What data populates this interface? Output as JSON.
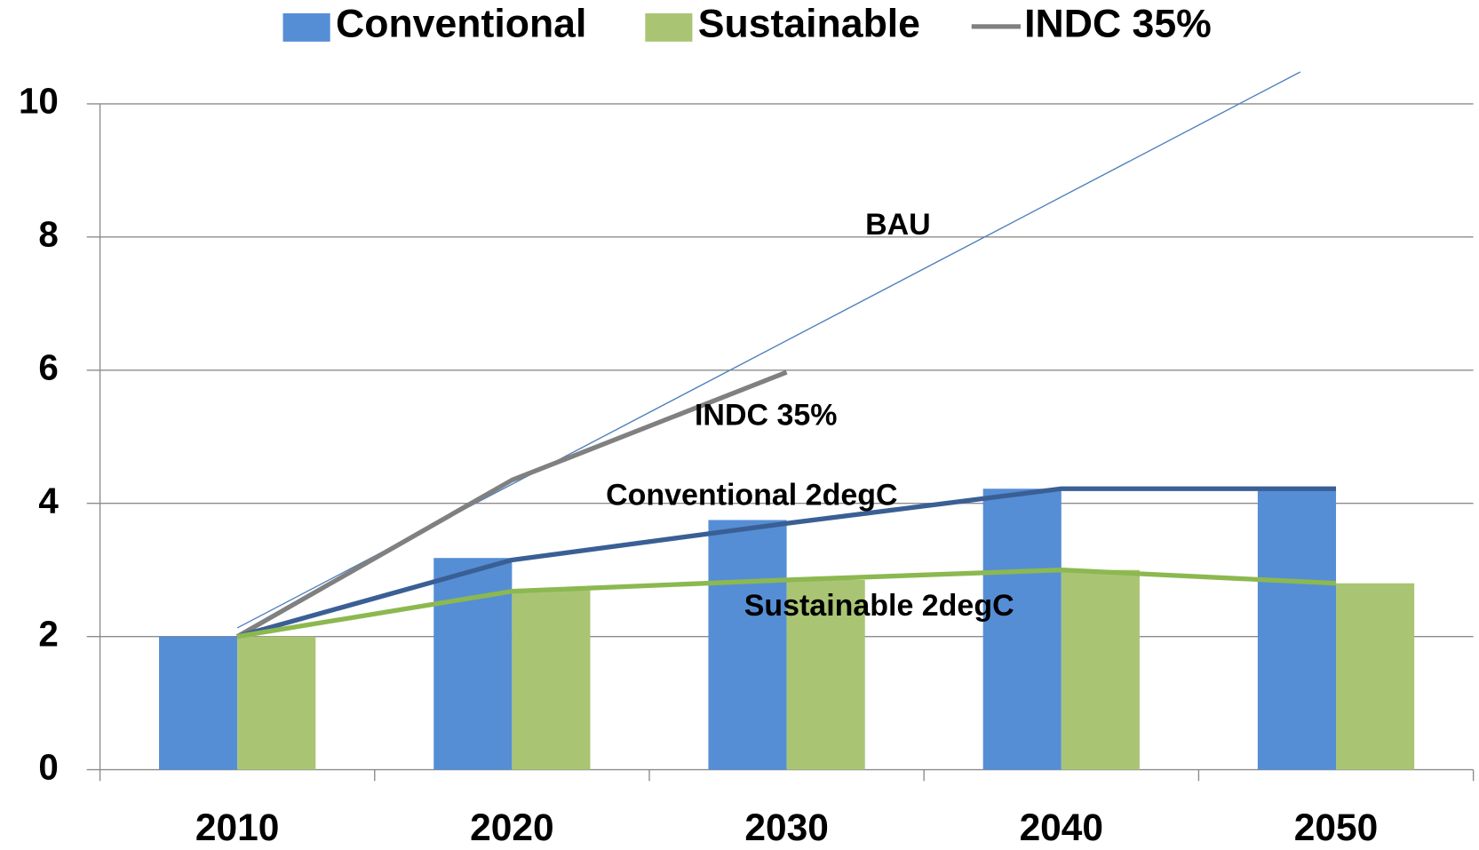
{
  "chart_data": {
    "type": "bar",
    "categories": [
      "2010",
      "2020",
      "2030",
      "2040",
      "2050"
    ],
    "series": [
      {
        "name": "Conventional",
        "color": "#558ed5",
        "values": [
          2.0,
          3.18,
          3.75,
          4.22,
          4.22
        ]
      },
      {
        "name": "Sustainable",
        "color": "#a9c574",
        "values": [
          2.0,
          2.7,
          2.85,
          3.0,
          2.8
        ]
      }
    ],
    "lines": [
      {
        "label": "BAU",
        "color": "#4f81bd",
        "x": [
          2010,
          2048.7
        ],
        "values": [
          2.13,
          10.48
        ]
      },
      {
        "name": "INDC 35%",
        "label": "INDC 35%",
        "color": "#808080",
        "values": [
          2.0,
          4.35,
          5.97,
          null,
          null
        ]
      },
      {
        "label": "Conventional 2degC",
        "color": "#3a5f95",
        "values": [
          2.0,
          3.15,
          3.7,
          4.22,
          4.22
        ]
      },
      {
        "label": "Sustainable 2degC",
        "color": "#8cb850",
        "values": [
          2.0,
          2.68,
          2.85,
          3.0,
          2.8
        ]
      }
    ],
    "ylim": [
      0,
      10
    ],
    "yticks": [
      0,
      2,
      4,
      6,
      8,
      10
    ],
    "grid": true,
    "legend": "top"
  }
}
